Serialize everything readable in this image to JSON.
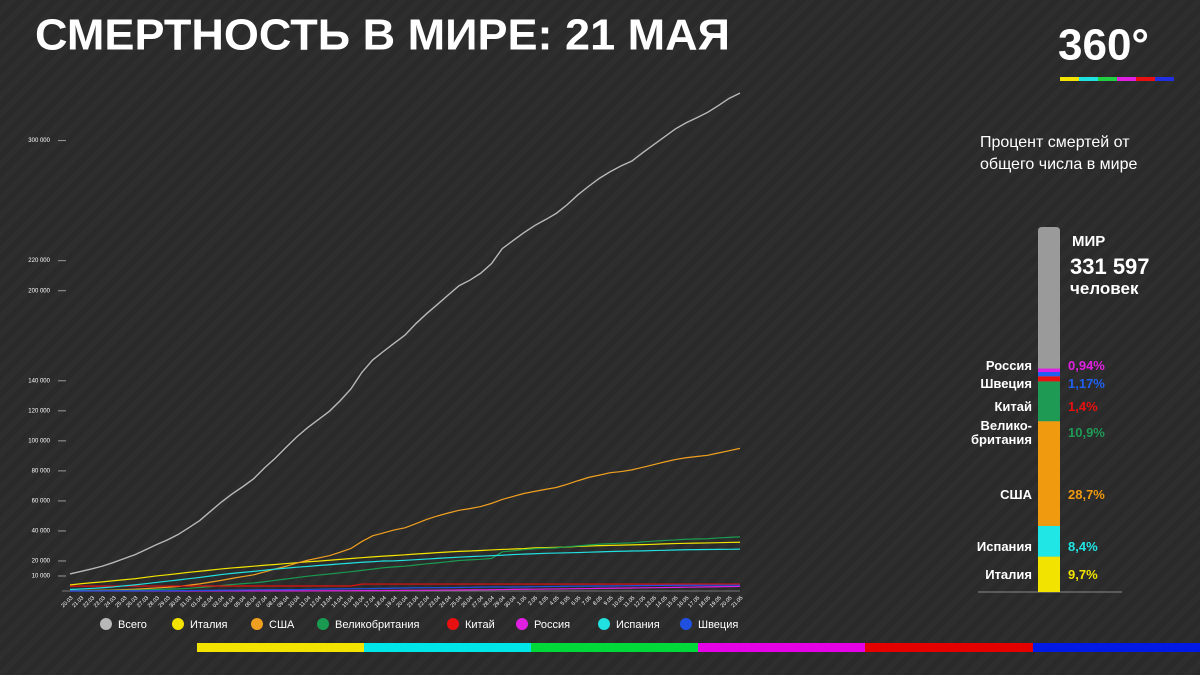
{
  "logo": "360°",
  "chart_data": [
    {
      "type": "line",
      "title": "СМЕРТНОСТЬ В МИРЕ: 21 МАЯ",
      "categories": [
        "20.03",
        "21.03",
        "22.03",
        "23.03",
        "24.03",
        "25.03",
        "26.03",
        "27.03",
        "28.03",
        "29.03",
        "30.03",
        "31.03",
        "01.04",
        "02.04",
        "03.04",
        "04.04",
        "05.04",
        "06.04",
        "07.04",
        "08.04",
        "09.04",
        "10.04",
        "11.04",
        "12.04",
        "13.04",
        "14.04",
        "15.04",
        "16.04",
        "17.04",
        "18.04",
        "19.04",
        "20.04",
        "21.04",
        "22.04",
        "23.04",
        "24.04",
        "25.04",
        "26.04",
        "27.04",
        "28.04",
        "29.04",
        "30.04",
        "1.05",
        "2.05",
        "3.05",
        "4.05",
        "5.05",
        "6.05",
        "7.05",
        "8.05",
        "9.05",
        "10.05",
        "11.05",
        "12.05",
        "13.05",
        "14.05",
        "15.05",
        "16.05",
        "17.05",
        "18.05",
        "19.05",
        "20.05",
        "21.05"
      ],
      "series": [
        {
          "name": "Всего",
          "color": "#b8b8b8",
          "values": [
            11398,
            13050,
            14690,
            16558,
            18950,
            21563,
            24152,
            27494,
            30885,
            33993,
            37610,
            42153,
            46906,
            53069,
            59179,
            64671,
            69520,
            74816,
            82019,
            88502,
            95735,
            102734,
            108862,
            114247,
            119682,
            126686,
            134615,
            145521,
            153822,
            159510,
            165069,
            170436,
            178034,
            184681,
            190858,
            197159,
            203292,
            206997,
            211609,
            217989,
            228030,
            233360,
            238650,
            243401,
            247306,
            251510,
            257239,
            263855,
            269567,
            274898,
            279311,
            283153,
            286355,
            291942,
            297197,
            302418,
            307666,
            311781,
            315185,
            318789,
            323285,
            328115,
            331597
          ]
        },
        {
          "name": "Италия",
          "color": "#f2e400",
          "values": [
            4032,
            4825,
            5476,
            6077,
            6820,
            7503,
            8165,
            9134,
            10023,
            10779,
            11591,
            12428,
            13155,
            13915,
            14681,
            15362,
            15887,
            16523,
            17127,
            17669,
            18279,
            18849,
            19468,
            19899,
            20465,
            21067,
            21645,
            22170,
            22745,
            23227,
            23660,
            24114,
            24648,
            25085,
            25549,
            25969,
            26384,
            26644,
            26977,
            27359,
            27682,
            27967,
            28236,
            28710,
            28884,
            29079,
            29315,
            29684,
            29958,
            30201,
            30395,
            30560,
            30739,
            30911,
            31106,
            31368,
            31610,
            31763,
            31908,
            32007,
            32169,
            32330,
            32486
          ]
        },
        {
          "name": "США",
          "color": "#f0a020",
          "values": [
            255,
            301,
            427,
            551,
            706,
            942,
            1209,
            1581,
            2026,
            2467,
            2978,
            3873,
            4757,
            5926,
            7087,
            8407,
            9619,
            10783,
            12722,
            14695,
            16478,
            18586,
            20463,
            22020,
            23529,
            25832,
            28326,
            32916,
            36773,
            38664,
            40661,
            42094,
            44845,
            47659,
            49954,
            51949,
            53755,
            54881,
            56219,
            58355,
            60967,
            62996,
            64943,
            66369,
            67682,
            68922,
            71022,
            73431,
            75662,
            77180,
            78795,
            79528,
            80682,
            82356,
            84136,
            85898,
            87530,
            88754,
            89562,
            90347,
            91921,
            93439,
            94994
          ]
        },
        {
          "name": "Великобритания",
          "color": "#1a9a50",
          "values": [
            177,
            233,
            281,
            335,
            422,
            465,
            578,
            759,
            1019,
            1228,
            1408,
            1789,
            2352,
            2921,
            3605,
            4313,
            4934,
            5373,
            6159,
            7097,
            7978,
            8958,
            9875,
            10612,
            11329,
            12107,
            12868,
            13729,
            14576,
            15464,
            16060,
            16509,
            17337,
            18100,
            18738,
            19506,
            20319,
            20732,
            21092,
            21678,
            26097,
            26771,
            27510,
            28131,
            28446,
            28734,
            29427,
            30076,
            30615,
            31241,
            31587,
            31855,
            32065,
            32692,
            33186,
            33614,
            33998,
            34466,
            34636,
            34796,
            35341,
            35704,
            36042
          ]
        },
        {
          "name": "Китай",
          "color": "#e81010",
          "values": [
            3248,
            3255,
            3261,
            3270,
            3277,
            3281,
            3285,
            3291,
            3296,
            3299,
            3304,
            3305,
            3312,
            3318,
            3326,
            3330,
            3333,
            3335,
            3335,
            3336,
            3339,
            3340,
            3343,
            3343,
            3341,
            3342,
            3342,
            4632,
            4632,
            4632,
            4632,
            4632,
            4632,
            4632,
            4632,
            4632,
            4632,
            4632,
            4632,
            4632,
            4633,
            4633,
            4633,
            4633,
            4633,
            4633,
            4633,
            4633,
            4633,
            4633,
            4633,
            4633,
            4633,
            4633,
            4633,
            4633,
            4633,
            4633,
            4633,
            4633,
            4634,
            4634,
            4634
          ]
        },
        {
          "name": "Россия",
          "color": "#e020e0",
          "values": [
            1,
            1,
            1,
            1,
            2,
            3,
            3,
            4,
            4,
            8,
            9,
            17,
            24,
            30,
            34,
            43,
            45,
            47,
            58,
            63,
            76,
            94,
            106,
            130,
            148,
            170,
            198,
            232,
            273,
            313,
            361,
            405,
            456,
            513,
            555,
            615,
            681,
            747,
            794,
            867,
            972,
            1073,
            1169,
            1222,
            1280,
            1356,
            1451,
            1537,
            1625,
            1723,
            1827,
            1915,
            2009,
            2116,
            2212,
            2305,
            2418,
            2537,
            2631,
            2722,
            2837,
            2972,
            3099
          ]
        },
        {
          "name": "Испания",
          "color": "#20e0e0",
          "values": [
            1002,
            1326,
            1720,
            2182,
            2696,
            3434,
            4089,
            4858,
            5690,
            6528,
            7340,
            8189,
            9053,
            10003,
            10935,
            11744,
            12418,
            13055,
            13798,
            14555,
            15238,
            15843,
            16353,
            16972,
            17489,
            18056,
            18579,
            19130,
            19478,
            20002,
            20043,
            20453,
            20852,
            21282,
            21717,
            22157,
            22524,
            22902,
            23190,
            23521,
            23822,
            24275,
            24543,
            24824,
            25100,
            25264,
            25428,
            25613,
            25857,
            26070,
            26299,
            26478,
            26621,
            26744,
            26920,
            27104,
            27321,
            27459,
            27563,
            27650,
            27709,
            27778,
            27888
          ]
        },
        {
          "name": "Швеция",
          "color": "#2050e0",
          "values": [
            20,
            21,
            25,
            36,
            62,
            77,
            105,
            110,
            146,
            179,
            239,
            282,
            358,
            401,
            477,
            591,
            687,
            793,
            870,
            887,
            899,
            919,
            1033,
            1203,
            1333,
            1400,
            1511,
            1540,
            1580,
            1765,
            1937,
            2021,
            2152,
            2192,
            2194,
            2274,
            2355,
            2462,
            2586,
            2653,
            2669,
            2679,
            2769,
            2854,
            2941,
            3040,
            3175,
            3220,
            3256,
            3313,
            3338,
            3460,
            3529,
            3646,
            3698,
            3743,
            3831,
            3831,
            3831,
            3871,
            3871,
            3871,
            3871
          ]
        }
      ],
      "ylim": [
        0,
        335000
      ],
      "yticks": [
        {
          "value": 10000,
          "label": "10 000"
        },
        {
          "value": 20000,
          "label": "20 000"
        },
        {
          "value": 40000,
          "label": "40 000"
        },
        {
          "value": 60000,
          "label": "60 000"
        },
        {
          "value": 80000,
          "label": "80 000"
        },
        {
          "value": 100000,
          "label": "100 000"
        },
        {
          "value": 120000,
          "label": "120 000"
        },
        {
          "value": 140000,
          "label": "140 000"
        },
        {
          "value": 200000,
          "label": "200 000"
        },
        {
          "value": 220000,
          "label": "220 000"
        },
        {
          "value": 300000,
          "label": "300 000"
        }
      ],
      "legend": "bottom"
    },
    {
      "type": "stacked_bar",
      "title": "Процент смертей от общего числа в мире",
      "total_label": "МИР",
      "total": 331597,
      "total_value_label": "331 597",
      "total_unit": "человек",
      "categories": [
        "Италия",
        "Испания",
        "США",
        "Велико-британия",
        "Китай",
        "Швеция",
        "Россия"
      ],
      "values": [
        9.7,
        8.4,
        28.7,
        10.9,
        1.4,
        1.17,
        0.94
      ],
      "value_labels": [
        "9,7%",
        "8,4%",
        "28,7%",
        "10,9%",
        "1,4%",
        "1,17%",
        "0,94%"
      ],
      "colors": [
        "#f2e400",
        "#20e6e6",
        "#f09a10",
        "#1e9a55",
        "#e81010",
        "#2060f0",
        "#e020e0"
      ],
      "ylim": [
        0,
        100
      ]
    }
  ]
}
